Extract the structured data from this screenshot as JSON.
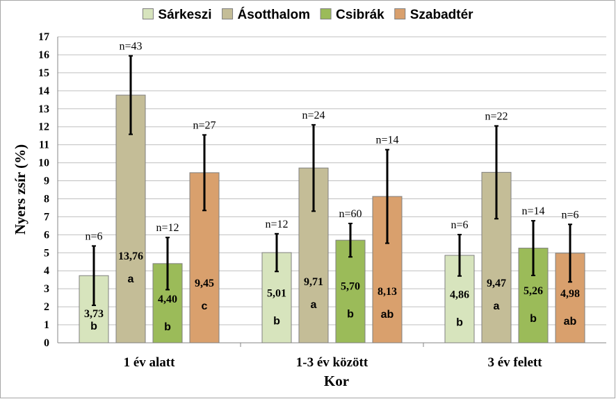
{
  "chart_data": {
    "type": "bar",
    "xlabel": "Kor",
    "ylabel": "Nyers zsír (%)",
    "ylim": [
      0,
      17
    ],
    "yticks": [
      "0",
      "1",
      "2",
      "3",
      "4",
      "5",
      "6",
      "7",
      "8",
      "9",
      "10",
      "11",
      "12",
      "13",
      "14",
      "15",
      "16",
      "17"
    ],
    "grid": true,
    "legend_position": "top",
    "categories": [
      "1 év alatt",
      "1-3 év között",
      "3 év felett"
    ],
    "series": [
      {
        "name": "Sárkeszi",
        "color": "#d7e4bd",
        "values": [
          3.73,
          5.01,
          4.86
        ],
        "errors": [
          1.65,
          1.05,
          1.15
        ],
        "value_labels": [
          "3,73",
          "5,01",
          "4,86"
        ],
        "n_labels": [
          "n=6",
          "n=12",
          "n=6"
        ],
        "sig_labels": [
          "b",
          "b",
          "b"
        ]
      },
      {
        "name": "Ásotthalom",
        "color": "#c4bd97",
        "values": [
          13.76,
          9.71,
          9.47
        ],
        "errors": [
          2.18,
          2.4,
          2.58
        ],
        "value_labels": [
          "13,76",
          "9,71",
          "9,47"
        ],
        "n_labels": [
          "n=43",
          "n=24",
          "n=22"
        ],
        "sig_labels": [
          "a",
          "a",
          "a"
        ]
      },
      {
        "name": "Csibrák",
        "color": "#9bbb59",
        "values": [
          4.4,
          5.7,
          5.26
        ],
        "errors": [
          1.45,
          0.93,
          1.52
        ],
        "value_labels": [
          "4,40",
          "5,70",
          "5,26"
        ],
        "n_labels": [
          "n=12",
          "n=60",
          "n=14"
        ],
        "sig_labels": [
          "b",
          "b",
          "b"
        ]
      },
      {
        "name": "Szabadtér",
        "color": "#d9a06d",
        "values": [
          9.45,
          8.13,
          4.98
        ],
        "errors": [
          2.1,
          2.6,
          1.6
        ],
        "value_labels": [
          "9,45",
          "8,13",
          "4,98"
        ],
        "n_labels": [
          "n=27",
          "n=14",
          "n=6"
        ],
        "sig_labels": [
          "c",
          "ab",
          "ab"
        ]
      }
    ]
  }
}
